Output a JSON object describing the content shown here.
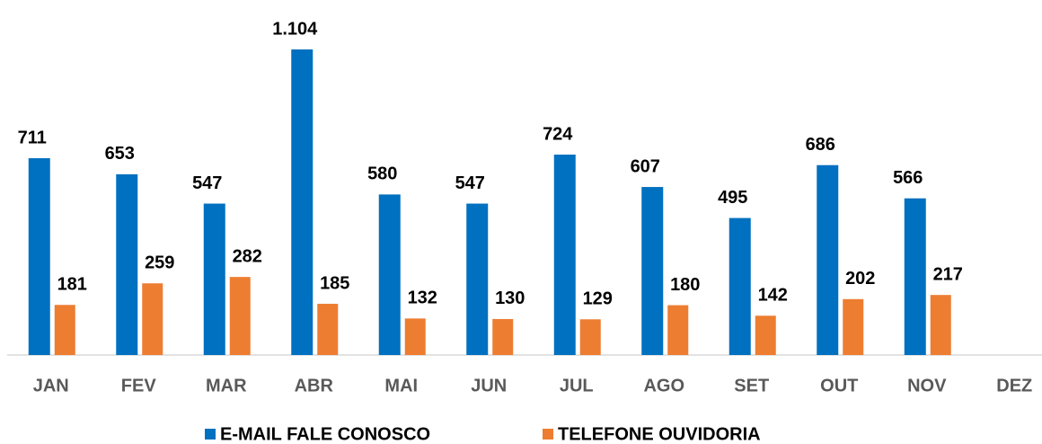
{
  "chart_data": {
    "type": "bar",
    "categories": [
      "JAN",
      "FEV",
      "MAR",
      "ABR",
      "MAI",
      "JUN",
      "JUL",
      "AGO",
      "SET",
      "OUT",
      "NOV",
      "DEZ"
    ],
    "series": [
      {
        "name": "E-MAIL FALE CONOSCO",
        "color": "#0070c0",
        "values": [
          711,
          653,
          547,
          1104,
          580,
          547,
          724,
          607,
          495,
          686,
          566,
          null
        ],
        "value_labels": [
          "711",
          "653",
          "547",
          "1.104",
          "580",
          "547",
          "724",
          "607",
          "495",
          "686",
          "566",
          null
        ]
      },
      {
        "name": "TELEFONE OUVIDORIA",
        "color": "#ed7d31",
        "values": [
          181,
          259,
          282,
          185,
          132,
          130,
          129,
          180,
          142,
          202,
          217,
          null
        ]
      }
    ],
    "legend": "bottom"
  }
}
